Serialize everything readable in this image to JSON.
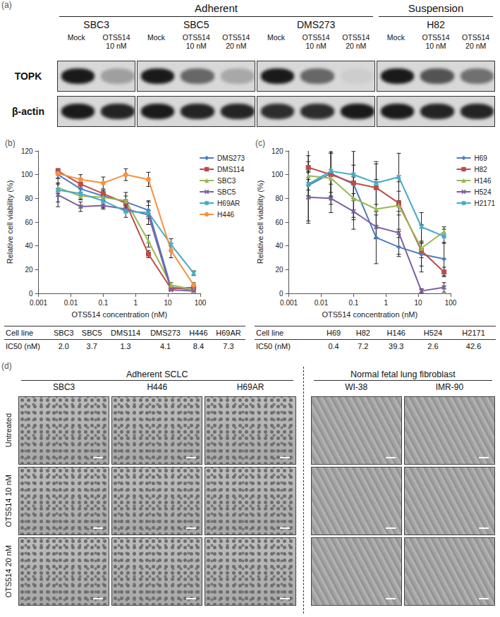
{
  "panel_a": {
    "label": "(a)",
    "rows": [
      "TOPK",
      "β-actin"
    ],
    "sections": [
      {
        "label": "Adherent",
        "cell_lines": [
          {
            "name": "SBC3",
            "lanes": [
              {
                "label": "Mock",
                "bands": [
                  1.0,
                  1.0
                ]
              },
              {
                "label": "OTS514 10 nM",
                "bands": [
                  0.3,
                  0.95
                ]
              }
            ]
          },
          {
            "name": "SBC5",
            "lanes": [
              {
                "label": "Mock",
                "bands": [
                  1.0,
                  1.0
                ]
              },
              {
                "label": "OTS514 10 nM",
                "bands": [
                  0.6,
                  0.95
                ]
              },
              {
                "label": "OTS514 20 nM",
                "bands": [
                  0.25,
                  0.95
                ]
              }
            ]
          },
          {
            "name": "DMS273",
            "lanes": [
              {
                "label": "Mock",
                "bands": [
                  1.0,
                  0.9
                ]
              },
              {
                "label": "OTS514 10 nM",
                "bands": [
                  0.6,
                  0.9
                ]
              },
              {
                "label": "OTS514 20 nM",
                "bands": [
                  0.05,
                  1.0
                ]
              }
            ]
          }
        ]
      },
      {
        "label": "Suspension",
        "cell_lines": [
          {
            "name": "H82",
            "lanes": [
              {
                "label": "Mock",
                "bands": [
                  1.0,
                  1.0
                ]
              },
              {
                "label": "OTS514 10 nM",
                "bands": [
                  0.7,
                  0.95
                ]
              },
              {
                "label": "OTS514 20 nM",
                "bands": [
                  0.55,
                  0.95
                ]
              }
            ]
          }
        ]
      }
    ]
  },
  "chart_data": [
    {
      "type": "line",
      "title": "(b)",
      "x_label": "OTS514 concentration (nM)",
      "y_label": "Relative cell viability (%)",
      "log": "x",
      "grid": false,
      "legend": "right",
      "xlim": [
        0.001,
        100
      ],
      "xticks": [
        0.001,
        0.01,
        0.1,
        1,
        10,
        100
      ],
      "ylim": [
        0,
        120
      ],
      "yticks": [
        0,
        20,
        40,
        60,
        80,
        100,
        120
      ],
      "x": [
        0.004,
        0.02,
        0.1,
        0.5,
        2.5,
        12.5,
        62.5
      ],
      "series": [
        {
          "name": "DMS273",
          "color": "#4a7ebb",
          "marker": "diamond",
          "values": [
            100,
            88,
            82,
            77,
            70,
            5,
            3
          ],
          "errors": [
            3,
            3,
            4,
            8,
            7,
            1,
            1
          ]
        },
        {
          "name": "DMS114",
          "color": "#be4b48",
          "marker": "square",
          "values": [
            103,
            92,
            84,
            76,
            33,
            4,
            5
          ],
          "errors": [
            2,
            4,
            3,
            3,
            3,
            1,
            1
          ]
        },
        {
          "name": "SBC3",
          "color": "#98b954",
          "marker": "triangle",
          "values": [
            89,
            82,
            81,
            78,
            44,
            7,
            3
          ],
          "errors": [
            3,
            3,
            3,
            4,
            5,
            2,
            1
          ]
        },
        {
          "name": "SBC5",
          "color": "#7d60a0",
          "marker": "x",
          "values": [
            83,
            73,
            74,
            71,
            66,
            3,
            2
          ],
          "errors": [
            10,
            4,
            3,
            3,
            8,
            1,
            1
          ]
        },
        {
          "name": "H69AR",
          "color": "#46aac5",
          "marker": "asterisk",
          "values": [
            87,
            84,
            78,
            69,
            68,
            41,
            17
          ],
          "errors": [
            10,
            5,
            6,
            5,
            10,
            5,
            2
          ]
        },
        {
          "name": "H446",
          "color": "#f69240",
          "marker": "circle",
          "values": [
            101,
            96,
            93,
            100,
            96,
            36,
            7
          ],
          "errors": [
            4,
            4,
            5,
            5,
            6,
            6,
            2
          ]
        }
      ]
    },
    {
      "type": "line",
      "title": "(c)",
      "x_label": "OTS514 concentration (nM)",
      "y_label": "Relative cell viability (%)",
      "log": "x",
      "grid": false,
      "legend": "right",
      "xlim": [
        0.001,
        100
      ],
      "xticks": [
        0.001,
        0.01,
        0.1,
        1,
        10,
        100
      ],
      "ylim": [
        0,
        120
      ],
      "yticks": [
        0,
        20,
        40,
        60,
        80,
        100,
        120
      ],
      "x": [
        0.004,
        0.02,
        0.1,
        0.5,
        2.5,
        12.5,
        62.5
      ],
      "series": [
        {
          "name": "H69",
          "color": "#4a7ebb",
          "marker": "diamond",
          "values": [
            91,
            101,
            92,
            47,
            39,
            33,
            29
          ],
          "errors": [
            30,
            20,
            28,
            22,
            8,
            10,
            14
          ]
        },
        {
          "name": "H82",
          "color": "#be4b48",
          "marker": "square",
          "values": [
            106,
            100,
            93,
            89,
            76,
            36,
            18
          ],
          "errors": [
            10,
            18,
            15,
            20,
            10,
            6,
            4
          ]
        },
        {
          "name": "H146",
          "color": "#98b954",
          "marker": "triangle",
          "values": [
            99,
            97,
            80,
            71,
            74,
            38,
            52
          ],
          "errors": [
            12,
            22,
            18,
            25,
            20,
            20,
            4
          ]
        },
        {
          "name": "H524",
          "color": "#7d60a0",
          "marker": "x",
          "values": [
            81,
            80,
            69,
            56,
            51,
            2,
            5
          ],
          "errors": [
            22,
            12,
            15,
            10,
            18,
            2,
            4
          ]
        },
        {
          "name": "H2171",
          "color": "#46aac5",
          "marker": "asterisk",
          "values": [
            92,
            103,
            100,
            93,
            98,
            56,
            48
          ],
          "errors": [
            10,
            18,
            20,
            18,
            20,
            12,
            6
          ]
        }
      ]
    }
  ],
  "ic50_tables": [
    {
      "rows": [
        [
          "Cell line",
          "SBC3",
          "SBC5",
          "DMS114",
          "DMS273",
          "H446",
          "H69AR"
        ],
        [
          "IC50 (nM)",
          "2.0",
          "3.7",
          "1.3",
          "4.1",
          "8.4",
          "7.3"
        ]
      ]
    },
    {
      "rows": [
        [
          "Cell line",
          "H69",
          "H82",
          "H146",
          "H524",
          "H2171"
        ],
        [
          "IC50 (nM)",
          "0.4",
          "7.2",
          "39.3",
          "2.6",
          "42.6"
        ]
      ]
    }
  ],
  "panel_d": {
    "label": "(d)",
    "groups": [
      {
        "label": "Adherent SCLC",
        "cell_lines": [
          "SBC3",
          "H446",
          "H69AR"
        ]
      },
      {
        "label": "Normal fetal lung fibroblast",
        "cell_lines": [
          "WI-38",
          "IMR-90"
        ]
      }
    ],
    "conditions": [
      "Untreated",
      "OTS514 10 nM",
      "OTS514 20 nM"
    ]
  }
}
